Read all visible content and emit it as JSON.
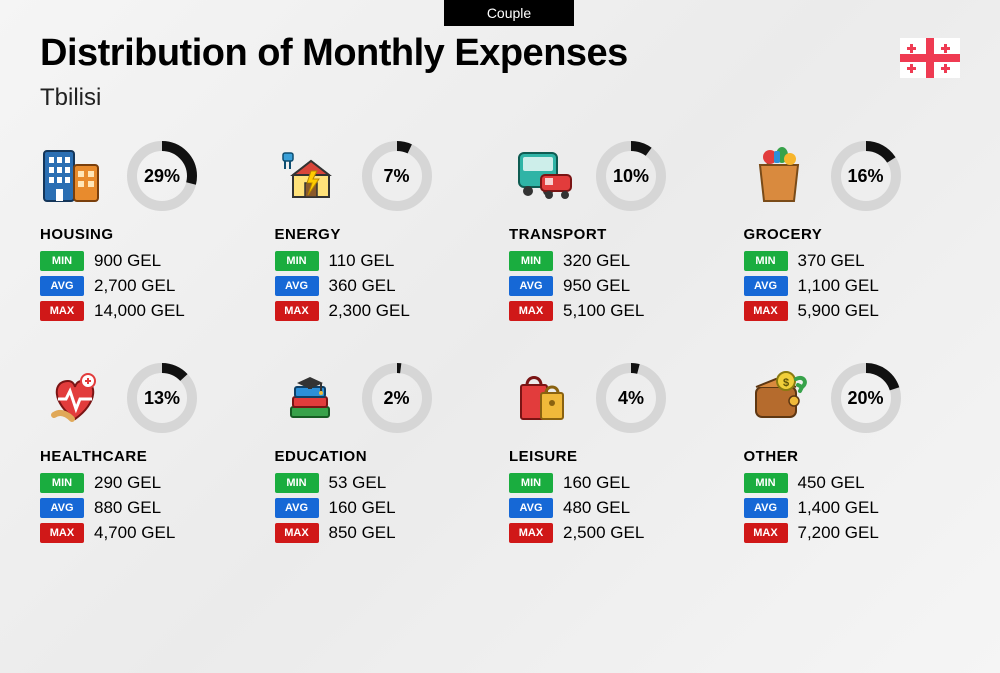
{
  "tab": "Couple",
  "title": "Distribution of Monthly Expenses",
  "city": "Tbilisi",
  "flag_colors": {
    "bg": "#ffffff",
    "cross": "#ef3b52"
  },
  "donut_style": {
    "radius": 30,
    "stroke_width": 10,
    "track_color": "#d6d6d6",
    "fill_color": "#111111"
  },
  "badge_colors": {
    "min": "#1aad3f",
    "avg": "#1668d6",
    "max": "#d01818"
  },
  "badge_labels": {
    "min": "MIN",
    "avg": "AVG",
    "max": "MAX"
  },
  "categories": [
    {
      "name": "HOUSING",
      "pct": 29,
      "min": "900 GEL",
      "avg": "2,700 GEL",
      "max": "14,000 GEL",
      "icon": "housing"
    },
    {
      "name": "ENERGY",
      "pct": 7,
      "min": "110 GEL",
      "avg": "360 GEL",
      "max": "2,300 GEL",
      "icon": "energy"
    },
    {
      "name": "TRANSPORT",
      "pct": 10,
      "min": "320 GEL",
      "avg": "950 GEL",
      "max": "5,100 GEL",
      "icon": "transport"
    },
    {
      "name": "GROCERY",
      "pct": 16,
      "min": "370 GEL",
      "avg": "1,100 GEL",
      "max": "5,900 GEL",
      "icon": "grocery"
    },
    {
      "name": "HEALTHCARE",
      "pct": 13,
      "min": "290 GEL",
      "avg": "880 GEL",
      "max": "4,700 GEL",
      "icon": "healthcare"
    },
    {
      "name": "EDUCATION",
      "pct": 2,
      "min": "53 GEL",
      "avg": "160 GEL",
      "max": "850 GEL",
      "icon": "education"
    },
    {
      "name": "LEISURE",
      "pct": 4,
      "min": "160 GEL",
      "avg": "480 GEL",
      "max": "2,500 GEL",
      "icon": "leisure"
    },
    {
      "name": "OTHER",
      "pct": 20,
      "min": "450 GEL",
      "avg": "1,400 GEL",
      "max": "7,200 GEL",
      "icon": "other"
    }
  ]
}
